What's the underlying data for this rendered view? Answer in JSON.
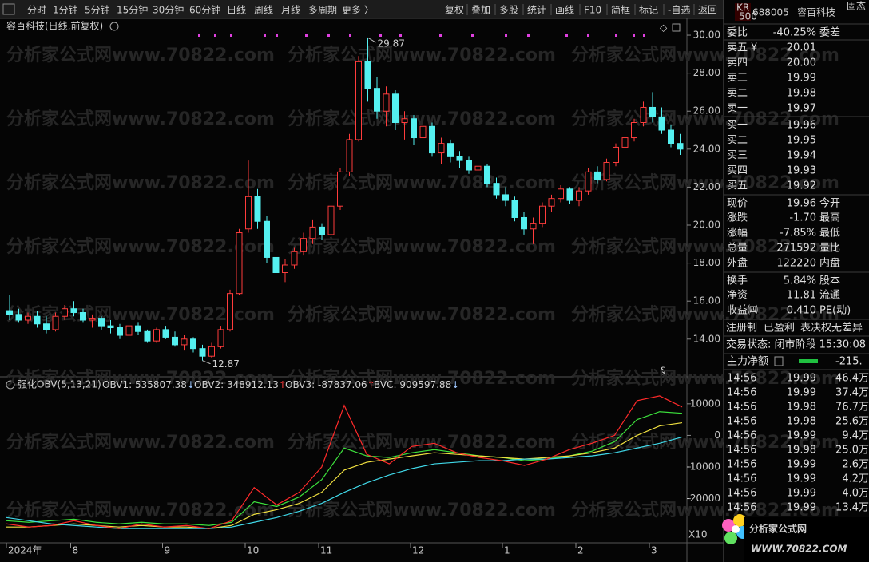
{
  "toolbar": {
    "left": [
      "分时",
      "1分钟",
      "5分钟",
      "15分钟",
      "30分钟",
      "60分钟",
      "日线",
      "周线",
      "月线",
      "多周期",
      "更多 〉"
    ],
    "active": "日线",
    "right": [
      "复权",
      "叠加",
      "多股",
      "统计",
      "画线",
      "F10",
      "简框",
      "标记",
      "-自选",
      "返回"
    ]
  },
  "chart": {
    "type": "candlestick",
    "title": "容百科技(日线,前复权)",
    "watermark": "分析家公式网www.70822.com",
    "up_color": "#ff3c3c",
    "down_color": "#54f0f0",
    "categories": [
      "2024年",
      null,
      null,
      null,
      null,
      null,
      null,
      "8",
      null,
      null,
      null,
      null,
      null,
      null,
      null,
      null,
      null,
      "9",
      null,
      null,
      null,
      null,
      null,
      null,
      null,
      null,
      "10",
      null,
      null,
      null,
      null,
      null,
      null,
      null,
      "11",
      null,
      null,
      null,
      null,
      null,
      null,
      null,
      null,
      null,
      "12",
      null,
      null,
      null,
      null,
      null,
      null,
      null,
      null,
      null,
      "1",
      null,
      null,
      null,
      null,
      null,
      null,
      null,
      "2",
      null,
      null,
      null,
      null,
      null,
      null,
      null,
      "3",
      null,
      null,
      null
    ],
    "candles": [
      [
        15.5,
        16.3,
        15.0,
        15.3
      ],
      [
        15.3,
        15.6,
        14.9,
        15.0
      ],
      [
        15.0,
        15.4,
        14.8,
        15.2
      ],
      [
        15.2,
        15.5,
        14.6,
        14.8
      ],
      [
        14.8,
        15.2,
        14.3,
        14.5
      ],
      [
        14.5,
        15.4,
        14.4,
        15.2
      ],
      [
        15.2,
        15.8,
        15.0,
        15.6
      ],
      [
        15.6,
        16.0,
        15.2,
        15.4
      ],
      [
        15.4,
        15.6,
        14.9,
        15.0
      ],
      [
        15.0,
        15.3,
        14.6,
        15.1
      ],
      [
        15.1,
        15.2,
        14.5,
        14.7
      ],
      [
        14.7,
        15.0,
        14.3,
        14.6
      ],
      [
        14.6,
        14.8,
        14.0,
        14.2
      ],
      [
        14.2,
        14.9,
        14.1,
        14.7
      ],
      [
        14.7,
        14.9,
        14.2,
        14.4
      ],
      [
        14.4,
        14.5,
        13.8,
        13.9
      ],
      [
        13.9,
        14.6,
        13.8,
        14.5
      ],
      [
        14.5,
        14.7,
        14.0,
        14.1
      ],
      [
        14.1,
        14.4,
        13.6,
        13.7
      ],
      [
        13.7,
        14.2,
        13.4,
        14.0
      ],
      [
        14.0,
        14.1,
        13.3,
        13.5
      ],
      [
        13.5,
        13.7,
        12.87,
        13.1
      ],
      [
        13.1,
        13.8,
        13.0,
        13.6
      ],
      [
        13.6,
        14.7,
        13.5,
        14.5
      ],
      [
        14.5,
        16.6,
        14.4,
        16.4
      ],
      [
        16.4,
        19.8,
        16.3,
        19.6
      ],
      [
        19.8,
        23.4,
        19.6,
        21.5
      ],
      [
        21.5,
        21.9,
        19.8,
        20.2
      ],
      [
        20.2,
        20.5,
        18.0,
        18.3
      ],
      [
        18.3,
        18.5,
        17.1,
        17.5
      ],
      [
        17.5,
        18.2,
        17.0,
        17.9
      ],
      [
        17.9,
        18.8,
        17.7,
        18.6
      ],
      [
        18.6,
        19.6,
        18.4,
        19.3
      ],
      [
        19.3,
        20.3,
        19.0,
        19.9
      ],
      [
        19.9,
        20.1,
        19.2,
        19.5
      ],
      [
        19.5,
        21.2,
        19.4,
        21.0
      ],
      [
        21.0,
        23.0,
        20.8,
        22.8
      ],
      [
        22.8,
        24.8,
        22.6,
        24.5
      ],
      [
        24.5,
        28.9,
        24.4,
        28.6
      ],
      [
        28.6,
        29.87,
        26.5,
        27.2
      ],
      [
        27.2,
        27.8,
        25.6,
        26.0
      ],
      [
        26.0,
        27.3,
        25.2,
        26.9
      ],
      [
        26.9,
        27.1,
        25.0,
        25.4
      ],
      [
        25.4,
        26.0,
        24.5,
        25.6
      ],
      [
        25.6,
        25.8,
        24.2,
        24.6
      ],
      [
        24.6,
        25.5,
        24.3,
        25.2
      ],
      [
        25.2,
        25.4,
        23.6,
        23.8
      ],
      [
        23.8,
        24.6,
        23.2,
        24.3
      ],
      [
        24.3,
        24.5,
        23.3,
        23.6
      ],
      [
        23.6,
        23.9,
        23.0,
        23.4
      ],
      [
        23.4,
        23.6,
        22.7,
        22.9
      ],
      [
        22.9,
        23.3,
        22.5,
        23.1
      ],
      [
        23.1,
        23.2,
        22.0,
        22.2
      ],
      [
        22.2,
        22.5,
        21.4,
        21.6
      ],
      [
        21.6,
        22.0,
        21.0,
        21.3
      ],
      [
        21.3,
        21.5,
        20.2,
        20.4
      ],
      [
        20.4,
        20.7,
        19.5,
        19.8
      ],
      [
        19.8,
        20.4,
        19.0,
        20.1
      ],
      [
        20.1,
        21.2,
        19.9,
        21.0
      ],
      [
        21.0,
        21.6,
        20.7,
        21.4
      ],
      [
        21.4,
        22.1,
        21.2,
        21.9
      ],
      [
        21.9,
        22.0,
        21.1,
        21.3
      ],
      [
        21.3,
        22.0,
        21.0,
        21.8
      ],
      [
        21.8,
        23.0,
        21.6,
        22.8
      ],
      [
        22.8,
        23.1,
        22.2,
        22.4
      ],
      [
        22.4,
        23.5,
        22.3,
        23.3
      ],
      [
        23.3,
        24.3,
        23.1,
        24.1
      ],
      [
        24.1,
        24.9,
        23.9,
        24.6
      ],
      [
        24.6,
        25.6,
        24.4,
        25.4
      ],
      [
        25.4,
        26.5,
        25.2,
        26.2
      ],
      [
        26.2,
        27.0,
        25.4,
        25.7
      ],
      [
        25.7,
        26.2,
        24.8,
        25.0
      ],
      [
        25.0,
        25.3,
        24.1,
        24.3
      ],
      [
        24.3,
        24.8,
        23.7,
        24.0
      ]
    ],
    "ylim": [
      12.1,
      30.8
    ],
    "yticks": [
      {
        "value": 30,
        "label": "30.00"
      },
      {
        "value": 28,
        "label": "28.00"
      },
      {
        "value": 26,
        "label": "26.00"
      },
      {
        "value": 24,
        "label": "24.00"
      },
      {
        "value": 22,
        "label": "22.00"
      },
      {
        "value": 20,
        "label": "20.00"
      },
      {
        "value": 18,
        "label": "18.00"
      },
      {
        "value": 16,
        "label": "16.00"
      },
      {
        "value": 14,
        "label": "14.00"
      }
    ]
  },
  "indicator": {
    "type": "line",
    "title": "强化OBV(5,13,21)",
    "legend_sep": ": ",
    "multiplier": "X10",
    "ylim": [
      -34000,
      14000
    ],
    "yticks": [
      10000,
      0,
      -10000,
      -20000
    ],
    "series": [
      {
        "name": "OBV1",
        "color": "#3ce03c",
        "value_label": "535807.38",
        "trend": "↓",
        "trend_color": "#9fc8ff",
        "values": [
          -27000,
          -27500,
          -27000,
          -26500,
          -27500,
          -28000,
          -27500,
          -28000,
          -28000,
          -28500,
          -27500,
          -21000,
          -22500,
          -19500,
          -14000,
          -4000,
          -6500,
          -7000,
          -5500,
          -4500,
          -5500,
          -6500,
          -7000,
          -8000,
          -7500,
          -6500,
          -5000,
          -2000,
          5000,
          7500,
          7000
        ]
      },
      {
        "name": "OBV2",
        "color": "#f0e040",
        "value_label": "348912.13",
        "trend": "↑",
        "trend_color": "#ff3c3c",
        "values": [
          -29000,
          -29000,
          -28500,
          -28000,
          -28500,
          -29000,
          -28500,
          -29000,
          -29000,
          -29500,
          -28500,
          -25000,
          -23500,
          -21500,
          -18000,
          -11000,
          -8500,
          -7500,
          -6500,
          -5500,
          -6000,
          -6500,
          -7000,
          -7500,
          -7000,
          -6500,
          -5500,
          -4000,
          0,
          3000,
          4000
        ]
      },
      {
        "name": "OBV3",
        "color": "#40d8e8",
        "value_label": "-87837.06",
        "trend": "↑",
        "trend_color": "#ff3c3c",
        "values": [
          -26000,
          -27000,
          -28000,
          -28500,
          -29000,
          -29500,
          -29500,
          -29500,
          -29500,
          -29500,
          -29000,
          -27500,
          -26000,
          -24000,
          -21500,
          -18000,
          -15000,
          -12500,
          -10500,
          -9000,
          -8500,
          -8000,
          -8000,
          -7500,
          -7500,
          -7000,
          -6500,
          -5500,
          -4000,
          -2500,
          -500
        ]
      },
      {
        "name": "BVC",
        "color": "#ff2a2a",
        "value_label": "909597.88",
        "trend": "↓",
        "trend_color": "#9fc8ff",
        "values": [
          -28000,
          -29000,
          -28500,
          -27000,
          -28500,
          -29500,
          -28000,
          -29000,
          -28500,
          -29500,
          -27000,
          -16500,
          -22000,
          -18000,
          -10000,
          9500,
          -6000,
          -9000,
          -3500,
          -2500,
          -5500,
          -7000,
          -8000,
          -9500,
          -7500,
          -4500,
          -2500,
          0,
          11000,
          12500,
          9000
        ]
      }
    ]
  },
  "quote": {
    "badge": "KR",
    "badge_sub": "500",
    "code": "688005",
    "name": "容百科技",
    "tag": "固态",
    "ratio": {
      "label": "委比",
      "value": "-40.25%",
      "tail": "委差"
    },
    "ask_icon": "¥",
    "asks": [
      {
        "label": "卖五",
        "price": "20.01"
      },
      {
        "label": "卖四",
        "price": "20.00"
      },
      {
        "label": "卖三",
        "price": "19.99"
      },
      {
        "label": "卖二",
        "price": "19.98"
      },
      {
        "label": "卖一",
        "price": "19.97"
      }
    ],
    "bids": [
      {
        "label": "买一",
        "price": "19.96"
      },
      {
        "label": "买二",
        "price": "19.95"
      },
      {
        "label": "买三",
        "price": "19.94"
      },
      {
        "label": "买四",
        "price": "19.93"
      },
      {
        "label": "买五",
        "price": "19.92"
      }
    ],
    "stats": [
      {
        "label": "现价",
        "value": "19.96",
        "tail": "今开",
        "color": "#3ce03c"
      },
      {
        "label": "涨跌",
        "value": "-1.70",
        "tail": "最高",
        "color": "#3ce03c"
      },
      {
        "label": "涨幅",
        "value": "-7.85%",
        "tail": "最低",
        "color": "#3ce03c"
      },
      {
        "label": "总量",
        "value": "271592",
        "tail": "量比",
        "color": "#f0c040"
      },
      {
        "label": "外盘",
        "value": "122220",
        "tail": "内盘",
        "color": "#ff3c3c"
      },
      {
        "label": "换手",
        "value": "5.84%",
        "tail": "股本",
        "color": "#e0e0e0"
      },
      {
        "label": "净资",
        "value": "11.81",
        "tail": "流通",
        "color": "#e0e0e0"
      },
      {
        "label": "收益㈣",
        "value": "0.410",
        "tail": "PE(动)",
        "color": "#e0e0e0"
      }
    ],
    "info": [
      "注册制",
      "已盈利",
      "表决权无差异"
    ],
    "status": "交易状态: 闭市阶段 15:30:08",
    "flow": {
      "label": "主力净额",
      "value": "-215."
    },
    "ticks": [
      [
        "14:56",
        "19.99",
        "46.4万"
      ],
      [
        "14:56",
        "19.99",
        "37.4万"
      ],
      [
        "14:56",
        "19.98",
        "76.7万"
      ],
      [
        "14:56",
        "19.98",
        "25.6万"
      ],
      [
        "14:56",
        "19.99",
        "9.4万"
      ],
      [
        "14:56",
        "19.98",
        "25.0万"
      ],
      [
        "14:56",
        "19.99",
        "2.6万"
      ],
      [
        "14:56",
        "19.99",
        "4.2万"
      ],
      [
        "14:56",
        "19.99",
        "4.0万"
      ],
      [
        "14:56",
        "19.99",
        "13.4万"
      ]
    ]
  },
  "logo": {
    "title": "分析家公式网",
    "url": "WWW.70822.COM"
  }
}
